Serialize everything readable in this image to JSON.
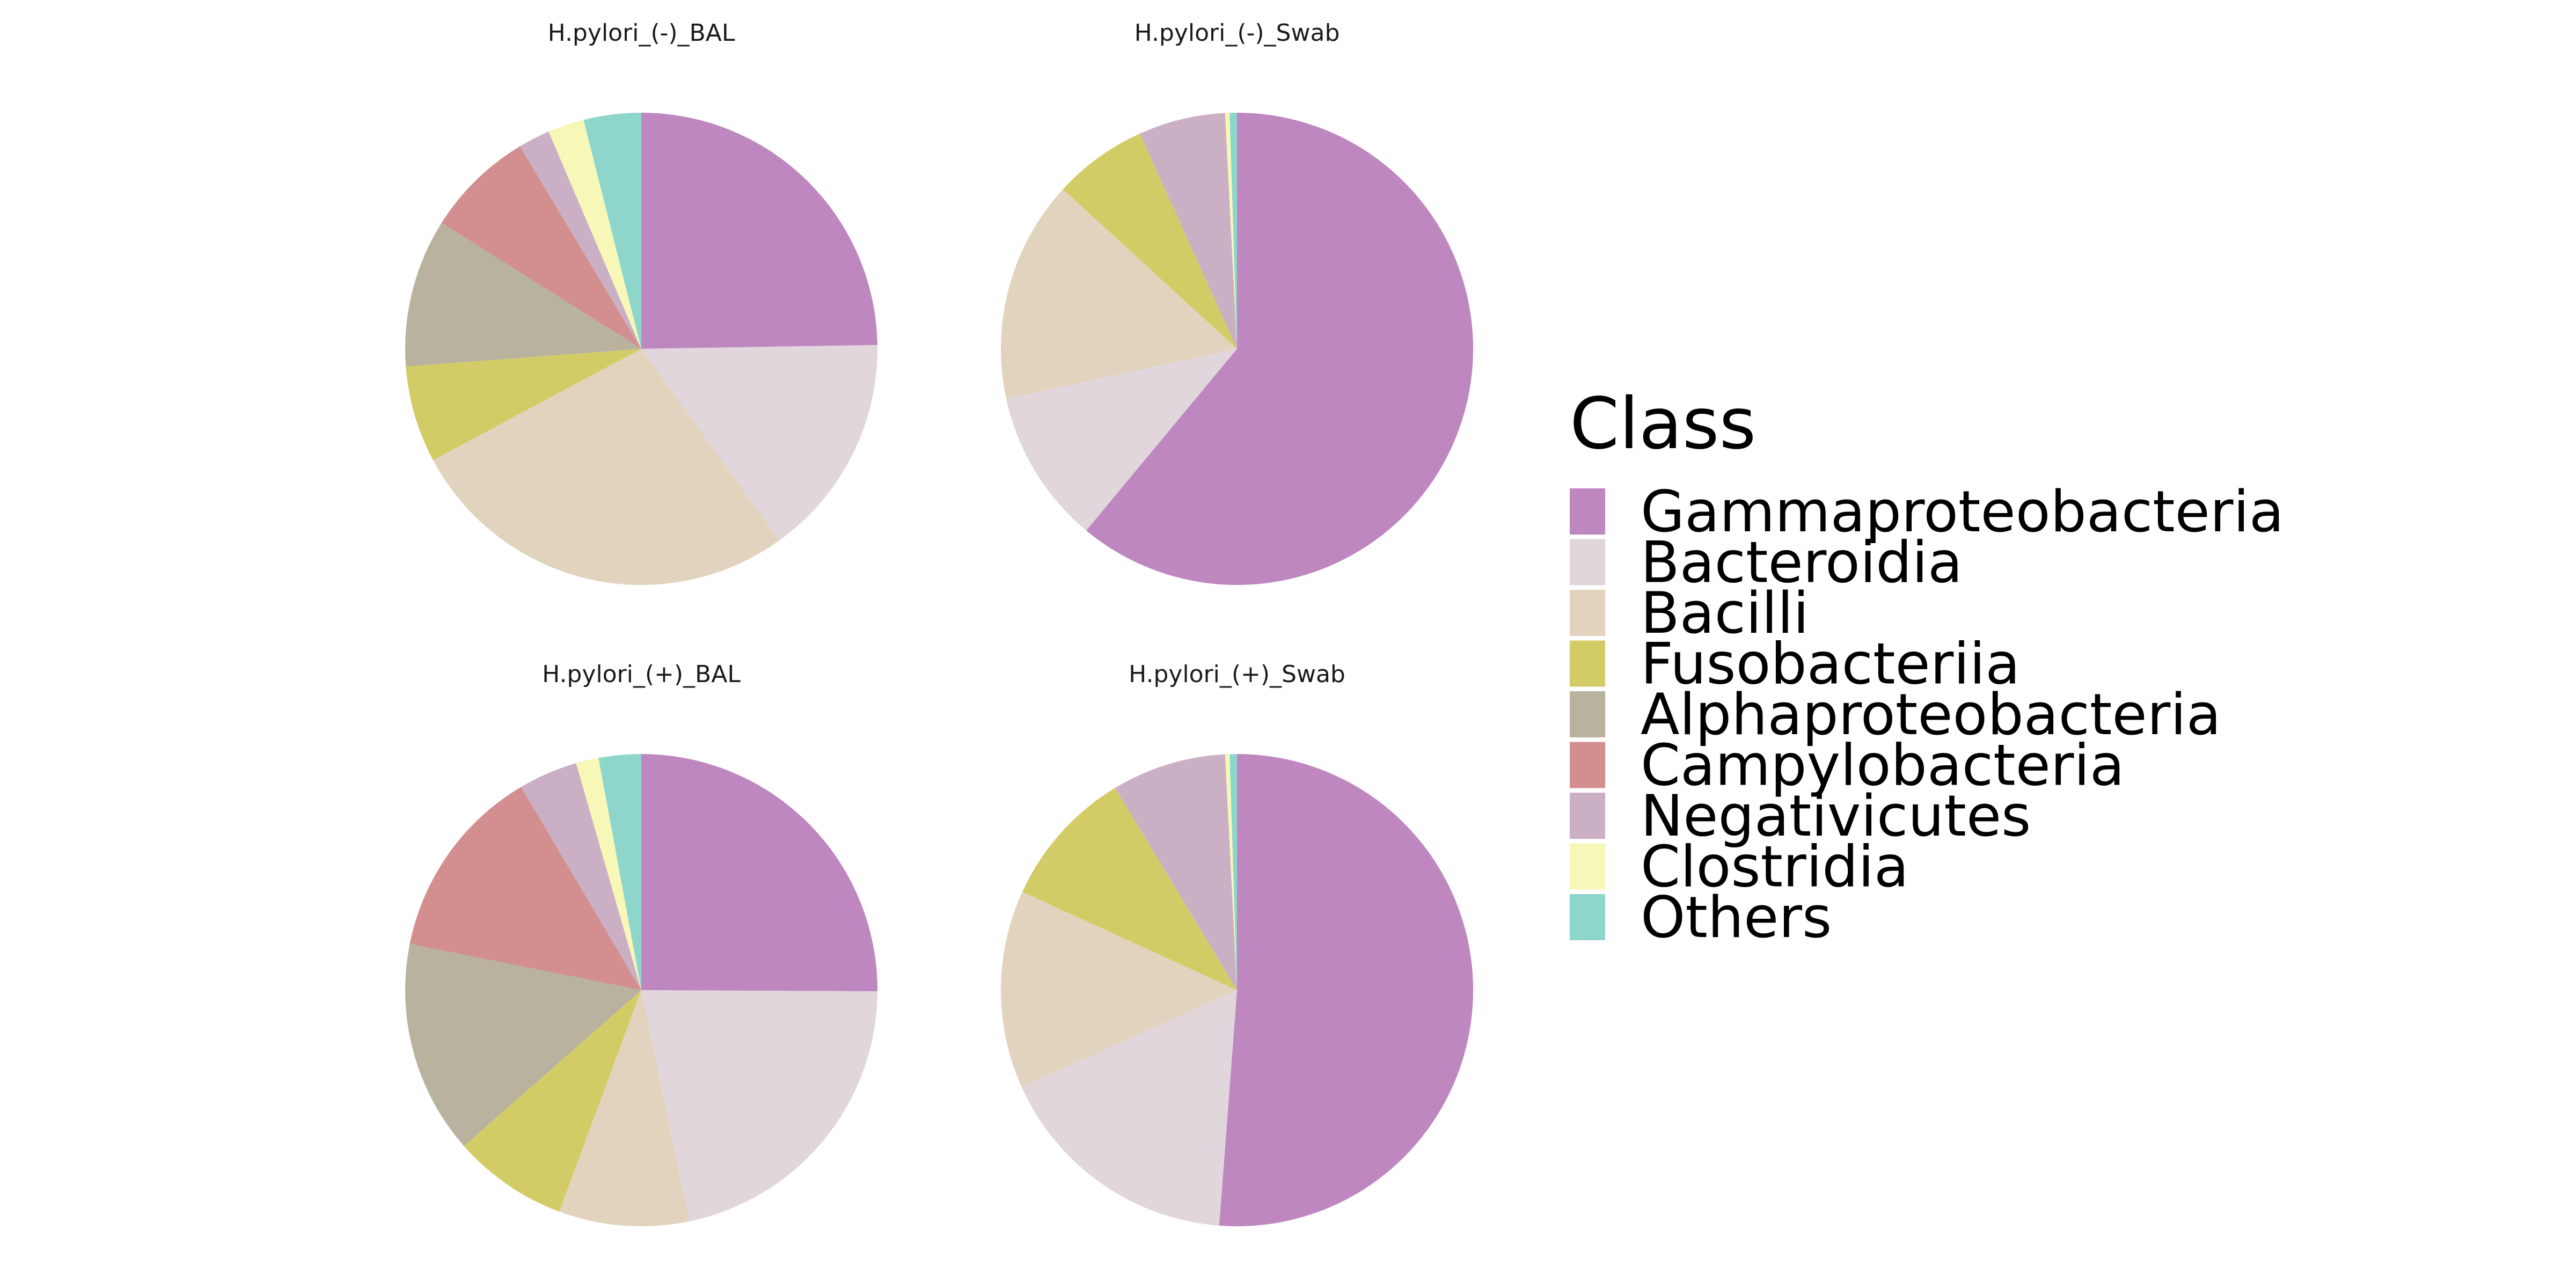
{
  "chart_data": {
    "type": "pie",
    "categories": [
      "Gammaproteobacteria",
      "Bacteroidia",
      "Bacilli",
      "Fusobacteriia",
      "Alphaproteobacteria",
      "Campylobacteria",
      "Negativicutes",
      "Clostridia",
      "Others"
    ],
    "colors": [
      "#bf87bf",
      "#e0d6dc",
      "#e2d3be",
      "#d3cc66",
      "#b8b29f",
      "#d38f8f",
      "#cbafc4",
      "#f7f7b8",
      "#8ed6cb"
    ],
    "legend": {
      "title": "Class",
      "placement": "right"
    },
    "panels": [
      {
        "title": "H.pylori_(-)_BAL",
        "values": [
          23.9,
          14.8,
          26.2,
          6.4,
          9.8,
          7.2,
          2.1,
          2.4,
          3.8
        ]
      },
      {
        "title": "H.pylori_(-)_Swab",
        "values": [
          60.6,
          10.5,
          15.1,
          6.4,
          0.0,
          0.0,
          5.9,
          0.3,
          0.5
        ]
      },
      {
        "title": "H.pylori_(+)_BAL",
        "values": [
          24.2,
          20.9,
          8.6,
          7.6,
          14.1,
          12.9,
          3.9,
          1.5,
          2.8
        ]
      },
      {
        "title": "H.pylori_(+)_Swab",
        "values": [
          51.0,
          17.0,
          13.5,
          9.5,
          0.0,
          0.0,
          7.8,
          0.3,
          0.5
        ]
      }
    ]
  }
}
